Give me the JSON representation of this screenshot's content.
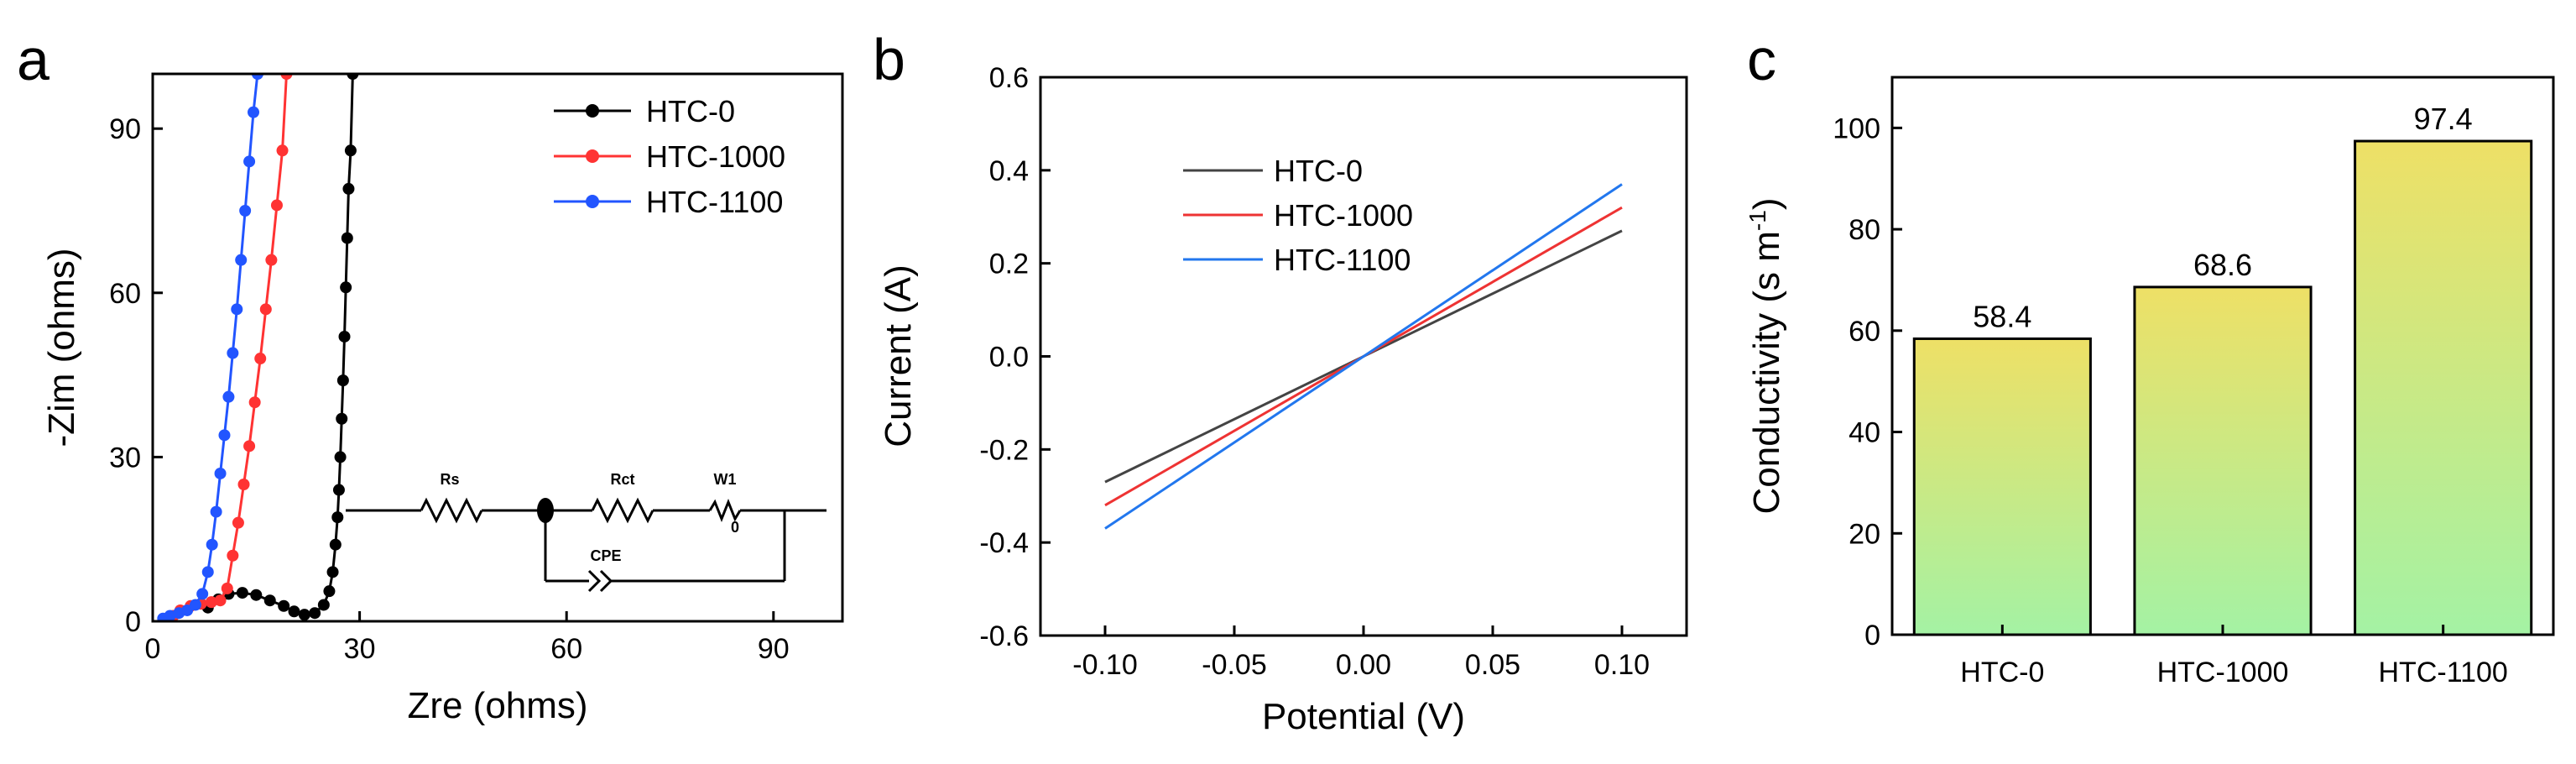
{
  "figure": {
    "panel_letters": [
      "a",
      "b",
      "c"
    ]
  },
  "chart_data": [
    {
      "panel": "a",
      "type": "scatter",
      "title": "",
      "xlabel": "Zre (ohms)",
      "ylabel": "-Zim (ohms)",
      "xlim": [
        0,
        100
      ],
      "ylim": [
        0,
        100
      ],
      "xticks": [
        0,
        30,
        60,
        90
      ],
      "yticks": [
        0,
        30,
        60,
        90
      ],
      "legend": [
        "HTC-0",
        "HTC-1000",
        "HTC-1100"
      ],
      "legend_position": "top-right",
      "series": [
        {
          "name": "HTC-0",
          "color": "#000000",
          "x": [
            8,
            9.5,
            11,
            13,
            15,
            17,
            19,
            20.5,
            22,
            23.5,
            24.8,
            25.6,
            26.1,
            26.5,
            26.8,
            27.0,
            27.2,
            27.4,
            27.6,
            27.8,
            28.0,
            28.2,
            28.4,
            28.7,
            29.0
          ],
          "y": [
            2.5,
            4.0,
            5.0,
            5.2,
            4.8,
            3.8,
            2.8,
            1.8,
            1.2,
            1.5,
            3.0,
            5.5,
            9,
            14,
            19,
            24,
            30,
            37,
            44,
            52,
            61,
            70,
            79,
            86,
            100
          ]
        },
        {
          "name": "HTC-1000",
          "color": "#ff3333",
          "x": [
            3,
            4,
            5.5,
            7,
            8.5,
            9.8,
            10.8,
            11.6,
            12.4,
            13.2,
            14.0,
            14.8,
            15.6,
            16.4,
            17.2,
            18.0,
            18.8,
            19.4
          ],
          "y": [
            1.0,
            2.0,
            2.8,
            3.2,
            3.5,
            3.8,
            6,
            12,
            18,
            25,
            32,
            40,
            48,
            57,
            66,
            76,
            86,
            100
          ]
        },
        {
          "name": "HTC-1100",
          "color": "#2255ff",
          "x": [
            1.5,
            2.5,
            3.8,
            5.0,
            6.2,
            7.2,
            8.0,
            8.6,
            9.2,
            9.8,
            10.4,
            11.0,
            11.6,
            12.2,
            12.8,
            13.4,
            14.0,
            14.6,
            15.2
          ],
          "y": [
            0.5,
            1.0,
            1.5,
            2.0,
            3.0,
            5.0,
            9,
            14,
            20,
            27,
            34,
            41,
            49,
            57,
            66,
            75,
            84,
            93,
            100
          ]
        }
      ],
      "inset_labels": {
        "rs": "Rs",
        "rct": "Rct",
        "w": "W1",
        "w_sub": "0",
        "cpe": "CPE"
      }
    },
    {
      "panel": "b",
      "type": "line",
      "title": "",
      "xlabel": "Potential (V)",
      "ylabel": "Current (A)",
      "xlim": [
        -0.125,
        0.125
      ],
      "ylim": [
        -0.6,
        0.6
      ],
      "xticks": [
        -0.1,
        -0.05,
        0.0,
        0.05,
        0.1
      ],
      "xtick_labels": [
        "-0.10",
        "-0.05",
        "0.00",
        "0.05",
        "0.10"
      ],
      "yticks": [
        -0.6,
        -0.4,
        -0.2,
        0.0,
        0.2,
        0.4,
        0.6
      ],
      "ytick_labels": [
        "-0.6",
        "-0.4",
        "-0.2",
        "0.0",
        "0.2",
        "0.4",
        "0.6"
      ],
      "legend": [
        "HTC-0",
        "HTC-1000",
        "HTC-1100"
      ],
      "legend_position": "upper-left",
      "series": [
        {
          "name": "HTC-0",
          "color": "#444444",
          "x": [
            -0.1,
            0.1
          ],
          "y": [
            -0.27,
            0.27
          ]
        },
        {
          "name": "HTC-1000",
          "color": "#ee3333",
          "x": [
            -0.1,
            0.1
          ],
          "y": [
            -0.32,
            0.32
          ]
        },
        {
          "name": "HTC-1100",
          "color": "#2277ee",
          "x": [
            -0.1,
            0.1
          ],
          "y": [
            -0.37,
            0.37
          ]
        }
      ]
    },
    {
      "panel": "c",
      "type": "bar",
      "title": "",
      "xlabel": "",
      "ylabel": "Conductivity (s m",
      "ylabel_sup": "-1",
      "ylabel_close": ")",
      "ylim": [
        0,
        110
      ],
      "yticks": [
        0,
        20,
        40,
        60,
        80,
        100
      ],
      "categories": [
        "HTC-0",
        "HTC-1000",
        "HTC-1100"
      ],
      "values": [
        58.4,
        68.6,
        97.4
      ],
      "value_labels": [
        "58.4",
        "68.6",
        "97.4"
      ],
      "fill_top": "#eee066",
      "fill_bottom": "#a4f2a4"
    }
  ]
}
